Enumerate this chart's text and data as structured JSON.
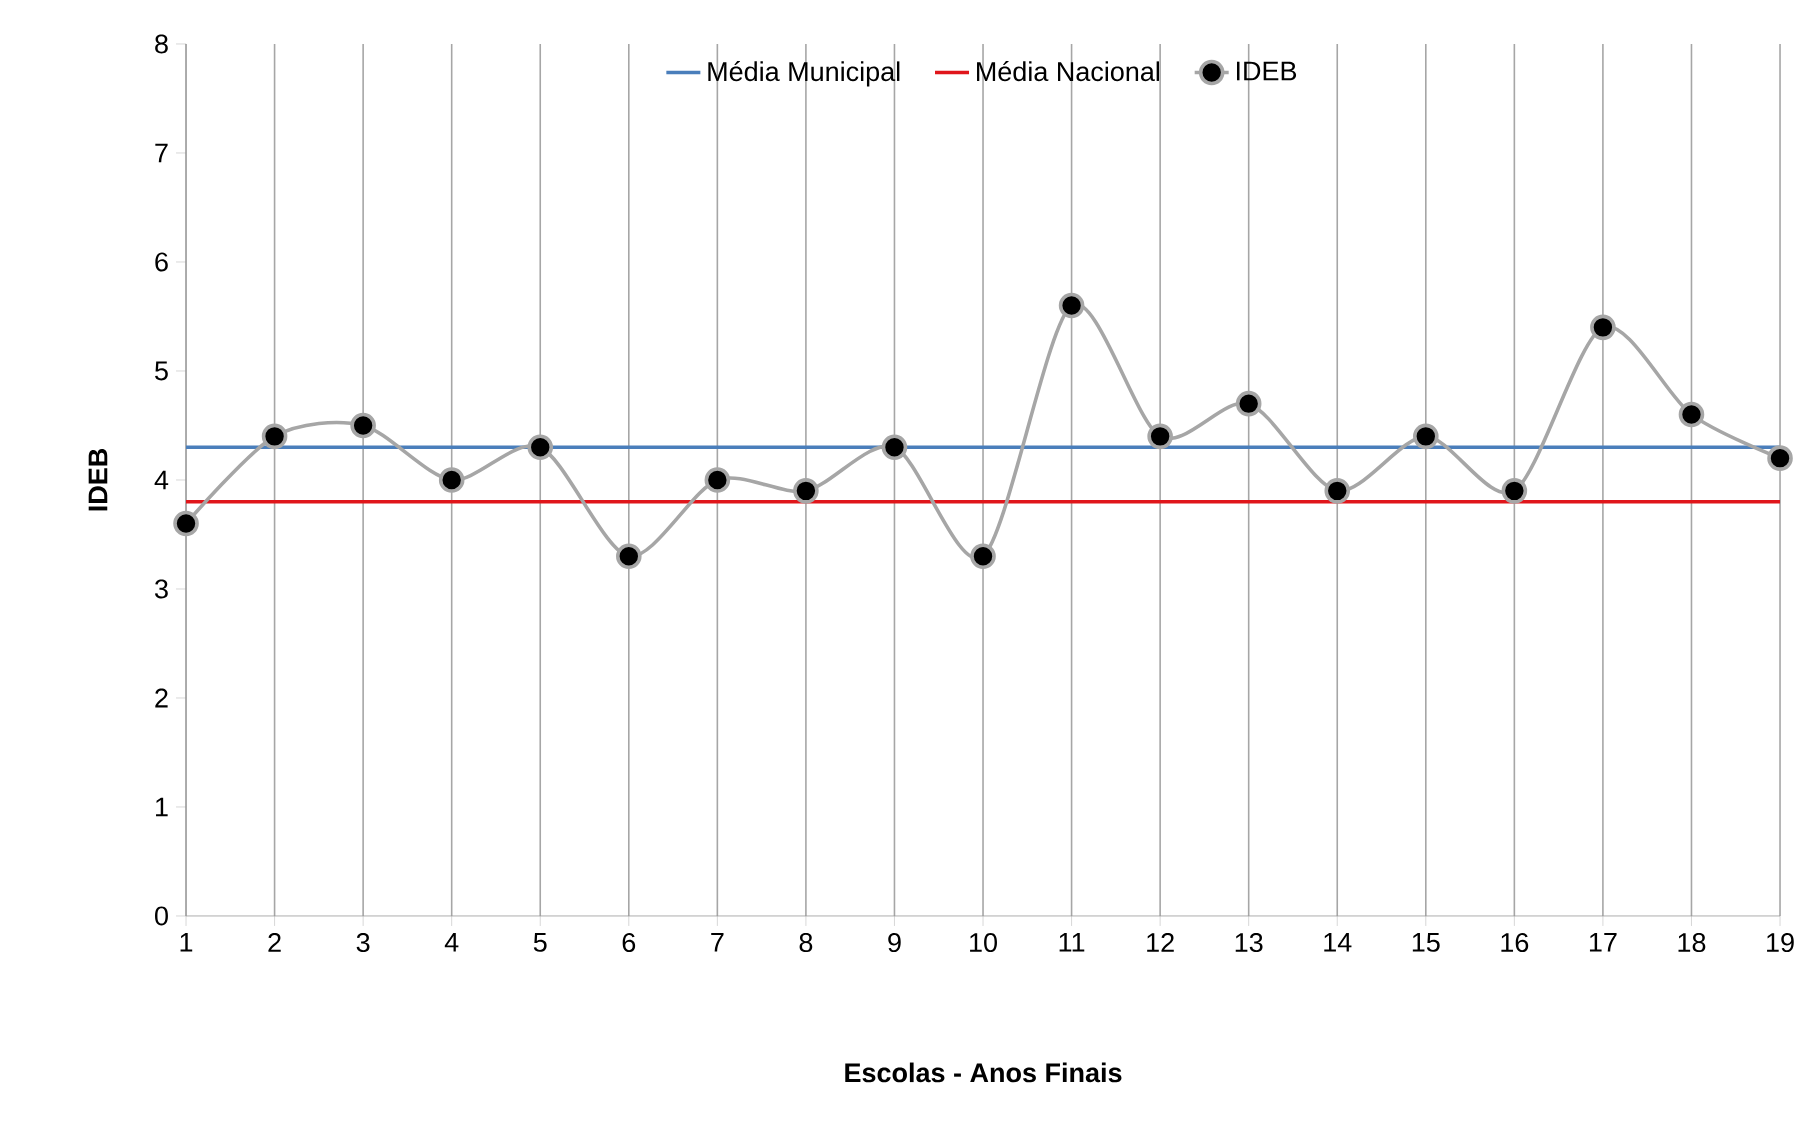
{
  "chart_data": {
    "type": "line",
    "xlabel": "Escolas - Anos Finais",
    "ylabel": "IDEB",
    "categories": [
      "1",
      "2",
      "3",
      "4",
      "5",
      "6",
      "7",
      "8",
      "9",
      "10",
      "11",
      "12",
      "13",
      "14",
      "15",
      "16",
      "17",
      "18",
      "19"
    ],
    "series": [
      {
        "name": "Média Municipal",
        "color": "#4a7ebb",
        "values": [
          4.3,
          4.3,
          4.3,
          4.3,
          4.3,
          4.3,
          4.3,
          4.3,
          4.3,
          4.3,
          4.3,
          4.3,
          4.3,
          4.3,
          4.3,
          4.3,
          4.3,
          4.3,
          4.3
        ],
        "marker": "none"
      },
      {
        "name": "Média Nacional",
        "color": "#e0161b",
        "values": [
          3.8,
          3.8,
          3.8,
          3.8,
          3.8,
          3.8,
          3.8,
          3.8,
          3.8,
          3.8,
          3.8,
          3.8,
          3.8,
          3.8,
          3.8,
          3.8,
          3.8,
          3.8,
          3.8
        ],
        "marker": "none"
      },
      {
        "name": "IDEB",
        "color": "#a6a6a6",
        "values": [
          3.6,
          4.4,
          4.5,
          4.0,
          4.3,
          3.3,
          4.0,
          3.9,
          4.3,
          3.3,
          5.6,
          4.4,
          4.7,
          3.9,
          4.4,
          3.9,
          5.4,
          4.6,
          4.2
        ],
        "marker": "circle"
      }
    ],
    "ylim": [
      0,
      8
    ],
    "yticks": [
      0,
      1,
      2,
      3,
      4,
      5,
      6,
      7,
      8
    ],
    "grid": "x",
    "legend": "top"
  }
}
